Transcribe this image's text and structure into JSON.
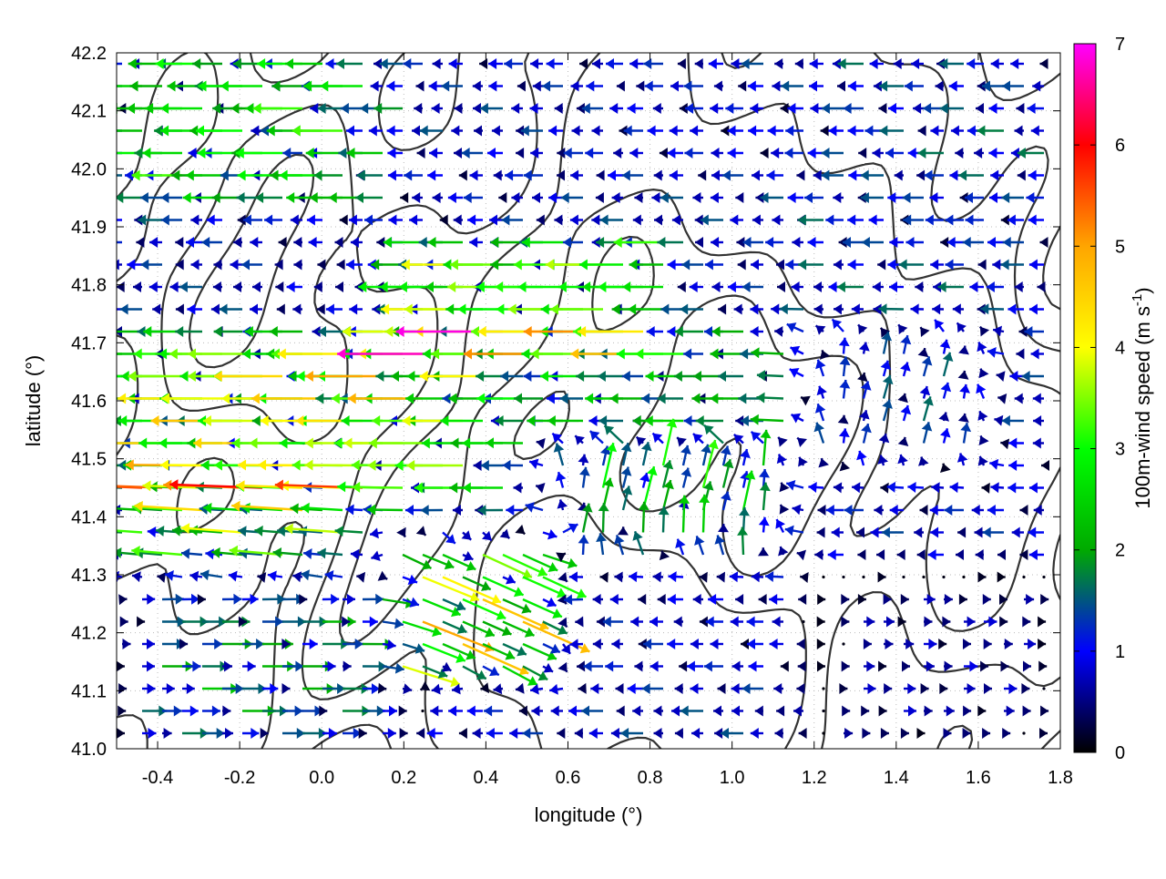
{
  "chart_data": {
    "type": "vector-field",
    "xlabel": "longitude (°)",
    "ylabel": "latitude (°)",
    "xlim": [
      -0.5,
      1.8
    ],
    "ylim": [
      41.0,
      42.2
    ],
    "x_ticks": [
      "-0.4",
      "-0.2",
      "0.0",
      "0.2",
      "0.4",
      "0.6",
      "0.8",
      "1.0",
      "1.2",
      "1.4",
      "1.6",
      "1.8"
    ],
    "x_tick_values": [
      -0.4,
      -0.2,
      0.0,
      0.2,
      0.4,
      0.6,
      0.8,
      1.0,
      1.2,
      1.4,
      1.6,
      1.8
    ],
    "y_ticks": [
      "41.0",
      "41.1",
      "41.2",
      "41.3",
      "41.4",
      "41.5",
      "41.6",
      "41.7",
      "41.8",
      "41.9",
      "42.0",
      "42.1",
      "42.2"
    ],
    "y_tick_values": [
      41.0,
      41.1,
      41.2,
      41.3,
      41.4,
      41.5,
      41.6,
      41.7,
      41.8,
      41.9,
      42.0,
      42.1,
      42.2
    ],
    "grid": true,
    "colorbar": {
      "label_main": "100m-wind speed (m s",
      "label_sup": "-1",
      "label_close": ")",
      "ticks": [
        "0",
        "1",
        "2",
        "3",
        "4",
        "5",
        "6",
        "7"
      ],
      "tick_values": [
        0,
        1,
        2,
        3,
        4,
        5,
        6,
        7
      ],
      "range": [
        0,
        7
      ],
      "colors": [
        "#000000",
        "#0000ff",
        "#00aa00",
        "#00ff00",
        "#ffff00",
        "#ffa500",
        "#ff0000",
        "#ff00ff"
      ]
    },
    "wind_regions": [
      {
        "lon": [
          -0.5,
          0.15
        ],
        "lat": [
          41.95,
          42.2
        ],
        "u": -3.6,
        "v": 0.0
      },
      {
        "lon": [
          -0.5,
          0.45
        ],
        "lat": [
          41.45,
          41.7
        ],
        "u": -5.2,
        "v": 0.0
      },
      {
        "lon": [
          -0.5,
          0.15
        ],
        "lat": [
          41.3,
          41.45
        ],
        "u": -4.0,
        "v": 0.3
      },
      {
        "lon": [
          0.2,
          0.85
        ],
        "lat": [
          41.7,
          41.85
        ],
        "u": -4.6,
        "v": 0.0
      },
      {
        "lon": [
          0.45,
          1.2
        ],
        "lat": [
          41.55,
          41.7
        ],
        "u": -2.9,
        "v": 0.0
      },
      {
        "lon": [
          0.2,
          0.55
        ],
        "lat": [
          41.15,
          41.35
        ],
        "u": 4.5,
        "v": -2.0
      },
      {
        "lon": [
          -0.5,
          0.2
        ],
        "lat": [
          41.0,
          41.3
        ],
        "u": 2.5,
        "v": 0.0
      },
      {
        "lon": [
          0.6,
          1.1
        ],
        "lat": [
          41.35,
          41.5
        ],
        "u": 0.8,
        "v": 3.2
      },
      {
        "lon": [
          1.2,
          1.8
        ],
        "lat": [
          41.0,
          41.3
        ],
        "u": 1.0,
        "v": 0.0
      },
      {
        "lon": [
          1.2,
          1.8
        ],
        "lat": [
          41.75,
          42.2
        ],
        "u": -1.8,
        "v": 0.0
      },
      {
        "lon": [
          0.8,
          1.2
        ],
        "lat": [
          41.85,
          42.0
        ],
        "u": -1.5,
        "v": 0.0
      },
      {
        "lon": [
          0.7,
          1.0
        ],
        "lat": [
          41.25,
          41.35
        ],
        "u": -1.2,
        "v": 0.0
      },
      {
        "lon": [
          1.2,
          1.6
        ],
        "lat": [
          41.5,
          41.7
        ],
        "u": 0.5,
        "v": 1.8
      },
      {
        "lon": [
          -0.1,
          0.3
        ],
        "lat": [
          41.75,
          41.95
        ],
        "u": -1.0,
        "v": 0.0
      }
    ],
    "background_wind": {
      "u": -1.5,
      "v": 0.0
    },
    "contour_levels": [
      0.3,
      0.5,
      0.7
    ],
    "terrain_features": [
      {
        "lon": 0.55,
        "lat": 41.2,
        "height": 1.0,
        "width": 0.18
      },
      {
        "lon": 0.95,
        "lat": 41.1,
        "height": 1.2,
        "width": 0.2
      },
      {
        "lon": 0.8,
        "lat": 42.1,
        "height": 1.0,
        "width": 0.2
      },
      {
        "lon": 1.3,
        "lat": 41.9,
        "height": 0.9,
        "width": 0.22
      },
      {
        "lon": -0.2,
        "lat": 41.85,
        "height": 0.8,
        "width": 0.22
      },
      {
        "lon": 0.45,
        "lat": 41.7,
        "height": 0.7,
        "width": 0.2
      },
      {
        "lon": 1.65,
        "lat": 41.55,
        "height": 0.8,
        "width": 0.18
      },
      {
        "lon": 0.15,
        "lat": 41.3,
        "height": 0.7,
        "width": 0.15
      },
      {
        "lon": 1.55,
        "lat": 41.3,
        "height": 0.6,
        "width": 0.18
      }
    ]
  }
}
